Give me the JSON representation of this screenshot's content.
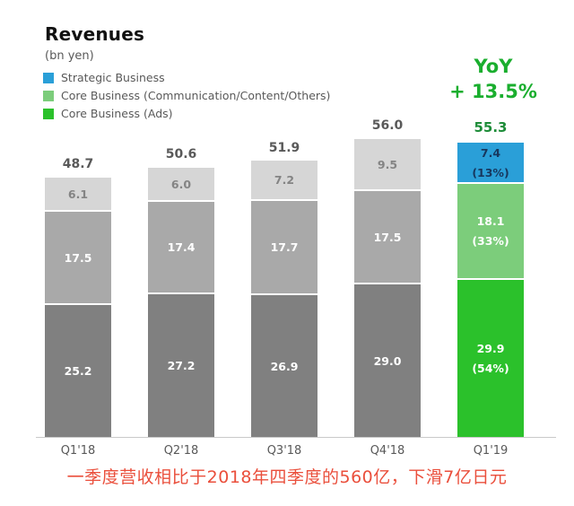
{
  "header": {
    "title": "Revenues",
    "subtitle": "(bn yen)"
  },
  "legend": [
    {
      "name": "strategic-business",
      "label": "Strategic Business",
      "color": "#2a9fd8"
    },
    {
      "name": "core-business-communication-content-others",
      "label": "Core Business (Communication/Content/Others)",
      "color": "#7ccd7b"
    },
    {
      "name": "core-business-ads",
      "label": "Core Business (Ads)",
      "color": "#2bc12b"
    }
  ],
  "yoy": {
    "line1": "YoY",
    "line2": "+ 13.5%",
    "color": "#1aae2e"
  },
  "chart_data": {
    "type": "bar",
    "stacked": true,
    "title": "Revenues",
    "unit": "bn yen",
    "legend_position": "top-left",
    "grid": false,
    "categories": [
      "Q1'18",
      "Q2'18",
      "Q3'18",
      "Q4'18",
      "Q1'19"
    ],
    "series": [
      {
        "name": "Core Business (Ads)",
        "values": [
          25.2,
          27.2,
          26.9,
          29.0,
          29.9
        ]
      },
      {
        "name": "Core Business (Communication/Content/Others)",
        "values": [
          17.5,
          17.4,
          17.7,
          17.5,
          18.1
        ]
      },
      {
        "name": "Strategic Business",
        "values": [
          6.1,
          6.0,
          7.2,
          9.5,
          7.4
        ]
      }
    ],
    "totals": [
      48.7,
      50.6,
      51.9,
      56.0,
      55.3
    ],
    "yoy_change": "+ 13.5%",
    "bars": [
      {
        "category": "Q1'18",
        "total": "48.7",
        "highlight": false,
        "total_color": "#595959",
        "segments": [
          {
            "name": "core-business-ads",
            "value": 25.2,
            "label": "25.2",
            "color": "#808080",
            "text_color": "#ffffff"
          },
          {
            "name": "core-business-communication-content-others",
            "value": 17.5,
            "label": "17.5",
            "color": "#a9a9a9",
            "text_color": "#ffffff"
          },
          {
            "name": "strategic-business",
            "value": 6.1,
            "label": "6.1",
            "color": "#d6d6d6",
            "text_color": "#848484"
          }
        ]
      },
      {
        "category": "Q2'18",
        "total": "50.6",
        "highlight": false,
        "total_color": "#595959",
        "segments": [
          {
            "name": "core-business-ads",
            "value": 27.2,
            "label": "27.2",
            "color": "#808080",
            "text_color": "#ffffff"
          },
          {
            "name": "core-business-communication-content-others",
            "value": 17.4,
            "label": "17.4",
            "color": "#a9a9a9",
            "text_color": "#ffffff"
          },
          {
            "name": "strategic-business",
            "value": 6.0,
            "label": "6.0",
            "color": "#d6d6d6",
            "text_color": "#848484"
          }
        ]
      },
      {
        "category": "Q3'18",
        "total": "51.9",
        "highlight": false,
        "total_color": "#595959",
        "segments": [
          {
            "name": "core-business-ads",
            "value": 26.9,
            "label": "26.9",
            "color": "#808080",
            "text_color": "#ffffff"
          },
          {
            "name": "core-business-communication-content-others",
            "value": 17.7,
            "label": "17.7",
            "color": "#a9a9a9",
            "text_color": "#ffffff"
          },
          {
            "name": "strategic-business",
            "value": 7.2,
            "label": "7.2",
            "color": "#d6d6d6",
            "text_color": "#848484"
          }
        ]
      },
      {
        "category": "Q4'18",
        "total": "56.0",
        "highlight": false,
        "total_color": "#595959",
        "segments": [
          {
            "name": "core-business-ads",
            "value": 29.0,
            "label": "29.0",
            "color": "#808080",
            "text_color": "#ffffff"
          },
          {
            "name": "core-business-communication-content-others",
            "value": 17.5,
            "label": "17.5",
            "color": "#a9a9a9",
            "text_color": "#ffffff"
          },
          {
            "name": "strategic-business",
            "value": 9.5,
            "label": "9.5",
            "color": "#d6d6d6",
            "text_color": "#848484"
          }
        ]
      },
      {
        "category": "Q1'19",
        "total": "55.3",
        "highlight": true,
        "total_color": "#1d8c38",
        "segments": [
          {
            "name": "core-business-ads",
            "value": 29.9,
            "label": "29.9",
            "sublabel": "(54%)",
            "color": "#2bc12b",
            "text_color": "#ffffff"
          },
          {
            "name": "core-business-communication-content-others",
            "value": 18.1,
            "label": "18.1",
            "sublabel": "(33%)",
            "color": "#7ccd7b",
            "text_color": "#ffffff"
          },
          {
            "name": "strategic-business",
            "value": 7.4,
            "label": "7.4",
            "sublabel": "(13%)",
            "color": "#2a9fd8",
            "text_color": "#17375e"
          }
        ]
      }
    ]
  },
  "footnote": {
    "text": "一季度营收相比于2018年四季度的560亿，下滑7亿日元",
    "color": "#ea4f3c"
  }
}
